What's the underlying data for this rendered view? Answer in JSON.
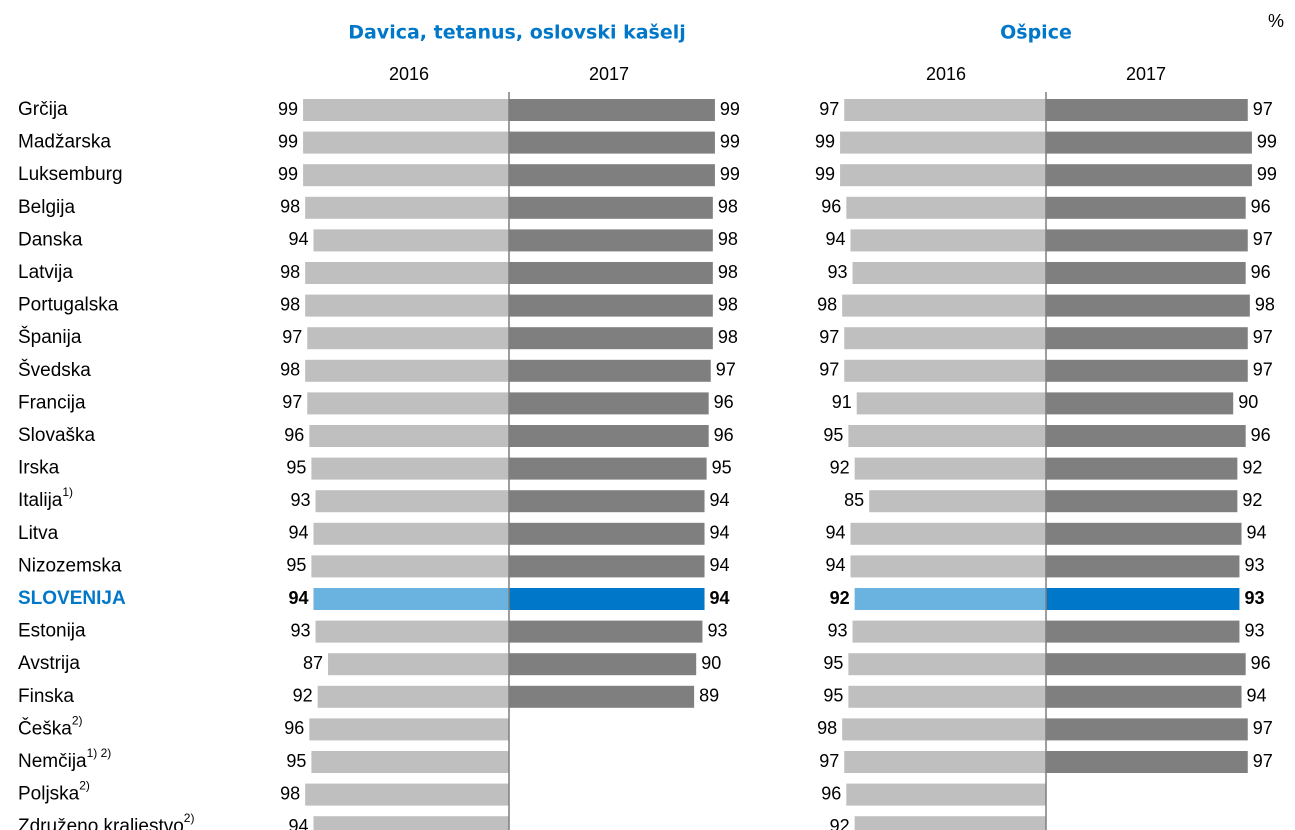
{
  "unit": "%",
  "categories": [
    "Grčija",
    "Madžarska",
    "Luksemburg",
    "Belgija",
    "Danska",
    "Latvija",
    "Portugalska",
    "Španija",
    "Švedska",
    "Francija",
    "Slovaška",
    "Irska",
    "Italija",
    "Litva",
    "Nizozemska",
    "SLOVENIJA",
    "Estonija",
    "Avstrija",
    "Finska",
    "Češka",
    "Nemčija",
    "Poljska",
    "Združeno kraljestvo"
  ],
  "category_notes": [
    null,
    null,
    null,
    null,
    null,
    null,
    null,
    null,
    null,
    null,
    null,
    null,
    "1)",
    null,
    null,
    null,
    null,
    null,
    null,
    "2)",
    "1) 2)",
    "2)",
    "2)"
  ],
  "highlight_index": 15,
  "highlight_label_color": "#0077c8",
  "chart_data": [
    {
      "type": "bar",
      "title": "Davica, tetanus, oslovski kašelj",
      "xlim": [
        0,
        100
      ],
      "series": [
        {
          "name": "2016",
          "color": "#bfbfbf",
          "highlight_color": "#6ab2e0",
          "values": [
            99,
            99,
            99,
            98,
            94,
            98,
            98,
            97,
            98,
            97,
            96,
            95,
            93,
            94,
            95,
            94,
            93,
            87,
            92,
            96,
            95,
            98,
            94
          ]
        },
        {
          "name": "2017",
          "color": "#7f7f7f",
          "highlight_color": "#0077c8",
          "values": [
            99,
            99,
            99,
            98,
            98,
            98,
            98,
            98,
            97,
            96,
            96,
            95,
            94,
            94,
            94,
            94,
            93,
            90,
            89,
            null,
            null,
            null,
            null
          ]
        }
      ]
    },
    {
      "type": "bar",
      "title": "Ošpice",
      "xlim": [
        0,
        100
      ],
      "series": [
        {
          "name": "2016",
          "color": "#bfbfbf",
          "highlight_color": "#6ab2e0",
          "values": [
            97,
            99,
            99,
            96,
            94,
            93,
            98,
            97,
            97,
            91,
            95,
            92,
            85,
            94,
            94,
            92,
            93,
            95,
            95,
            98,
            97,
            96,
            92
          ]
        },
        {
          "name": "2017",
          "color": "#7f7f7f",
          "highlight_color": "#0077c8",
          "values": [
            97,
            99,
            99,
            96,
            97,
            96,
            98,
            97,
            97,
            90,
            96,
            92,
            92,
            94,
            93,
            93,
            93,
            96,
            94,
            97,
            97,
            null,
            null
          ]
        }
      ]
    }
  ]
}
